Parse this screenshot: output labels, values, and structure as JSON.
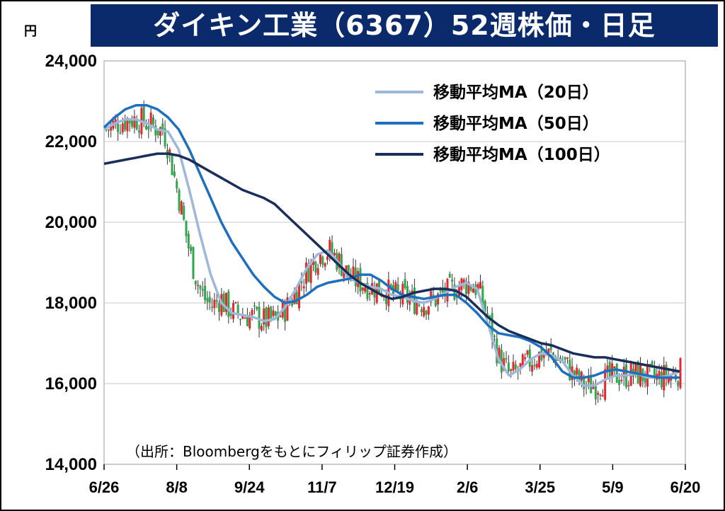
{
  "chart_data": {
    "type": "candlestick",
    "title": "ダイキン工業（6367）52週株価・日足",
    "ylabel": "円",
    "ylim": [
      14000,
      24000
    ],
    "yticks": [
      "14,000",
      "16,000",
      "18,000",
      "20,000",
      "22,000",
      "24,000"
    ],
    "xticks": [
      "6/26",
      "8/8",
      "9/24",
      "11/7",
      "12/19",
      "2/6",
      "3/25",
      "5/9",
      "6/20"
    ],
    "grid": true,
    "legend_position": "top-right",
    "source": "（出所：Bloombergをもとにフィリップ証券作成）",
    "colors": {
      "up": "#e8262b",
      "down": "#2ea84a",
      "ma20": "#9fb7d9",
      "ma50": "#1f6fc0",
      "ma100": "#1a2e5a"
    },
    "series": [
      {
        "name": "移動平均MA（20日）",
        "color": "#9fb7d9",
        "values": [
          22300,
          22450,
          22550,
          22550,
          22450,
          22300,
          22250,
          21800,
          20800,
          19700,
          18700,
          18000,
          17750,
          17700,
          17650,
          17550,
          17600,
          17900,
          18350,
          18850,
          19200,
          19300,
          19000,
          18600,
          18500,
          18400,
          18350,
          18200,
          18150,
          18050,
          18000,
          18100,
          18250,
          18400,
          18500,
          18350,
          17500,
          16600,
          16200,
          16350,
          16600,
          16750,
          16700,
          16550,
          16200,
          15950,
          15950,
          16100,
          16200,
          16200,
          16250,
          16150,
          16150,
          16200,
          16300
        ]
      },
      {
        "name": "移動平均MA（50日）",
        "color": "#1f6fc0",
        "values": [
          22350,
          22600,
          22800,
          22900,
          22900,
          22800,
          22600,
          22300,
          21800,
          21200,
          20600,
          20000,
          19500,
          19100,
          18700,
          18400,
          18150,
          18000,
          18050,
          18200,
          18400,
          18500,
          18550,
          18600,
          18700,
          18700,
          18550,
          18350,
          18200,
          18150,
          18100,
          18150,
          18200,
          18200,
          18000,
          17750,
          17450,
          17250,
          17200,
          17150,
          17050,
          16900,
          16650,
          16300,
          16150,
          16150,
          16200,
          16300,
          16350,
          16300,
          16250,
          16200,
          16150,
          16150,
          16150
        ]
      },
      {
        "name": "移動平均MA（100日）",
        "color": "#1a2e5a",
        "values": [
          21450,
          21500,
          21550,
          21600,
          21650,
          21700,
          21700,
          21650,
          21550,
          21400,
          21250,
          21100,
          20950,
          20800,
          20700,
          20600,
          20450,
          20200,
          19950,
          19700,
          19450,
          19200,
          18950,
          18700,
          18500,
          18350,
          18200,
          18100,
          18150,
          18250,
          18300,
          18350,
          18350,
          18300,
          18150,
          17900,
          17650,
          17450,
          17300,
          17200,
          17100,
          17000,
          16950,
          16850,
          16750,
          16700,
          16650,
          16650,
          16600,
          16550,
          16500,
          16450,
          16400,
          16350,
          16300
        ]
      }
    ]
  },
  "page": {
    "title": "ダイキン工業（6367）52週株価・日足",
    "unit": "円"
  }
}
